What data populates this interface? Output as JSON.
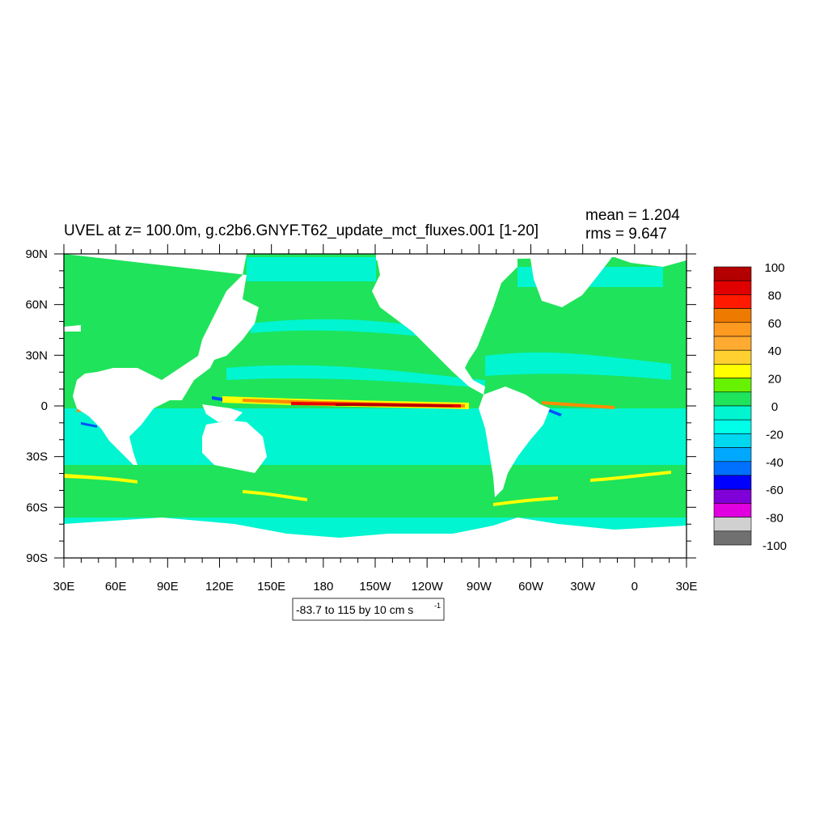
{
  "title": "UVEL at z= 100.0m, g.c2b6.GNYF.T62_update_mct_fluxes.001 [1-20]",
  "stats": {
    "mean": "mean = 1.204",
    "rms": "rms = 9.647"
  },
  "contour_info": {
    "text": "-83.7 to 115 by 10 cm s",
    "superscript": "-1"
  },
  "colors": {
    "land": "#ffffff",
    "frame": "#000000",
    "ocean_pos": "#1fe35a",
    "ocean_neg": "#00f5d0",
    "light_cyan": "#00ffe8",
    "yellow": "#ffff00",
    "orange": "#ff8c00",
    "red": "#e80000",
    "dark_red": "#b00000",
    "blue": "#0050ff"
  },
  "chart_data": {
    "type": "heatmap",
    "title": "UVEL at z= 100.0m, g.c2b6.GNYF.T62_update_mct_fluxes.001 [1-20]",
    "variable": "UVEL",
    "units": "cm s-1",
    "depth": "z= 100.0m",
    "mean": 1.204,
    "rms": 9.647,
    "x_ticks": [
      "30E",
      "60E",
      "90E",
      "120E",
      "150E",
      "180",
      "150W",
      "120W",
      "90W",
      "60W",
      "30W",
      "0",
      "30E"
    ],
    "y_ticks": [
      "90N",
      "60N",
      "30N",
      "0",
      "30S",
      "60S",
      "90S"
    ],
    "lon_range": [
      30,
      390
    ],
    "lat_range": [
      -90,
      90
    ],
    "colorbar": {
      "labels": [
        "100",
        "80",
        "60",
        "40",
        "20",
        "0",
        "-20",
        "-40",
        "-60",
        "-80",
        "-100"
      ],
      "colors": [
        "#b40000",
        "#e00000",
        "#ff1a00",
        "#ee7a00",
        "#ff9a20",
        "#ffaa30",
        "#ffd030",
        "#ffff00",
        "#66f200",
        "#1fe35a",
        "#00f5d0",
        "#00ffe8",
        "#00d8f0",
        "#00a8ff",
        "#0070ff",
        "#0000ff",
        "#8000d8",
        "#e000e0",
        "#d0d0d0",
        "#707070"
      ]
    }
  }
}
